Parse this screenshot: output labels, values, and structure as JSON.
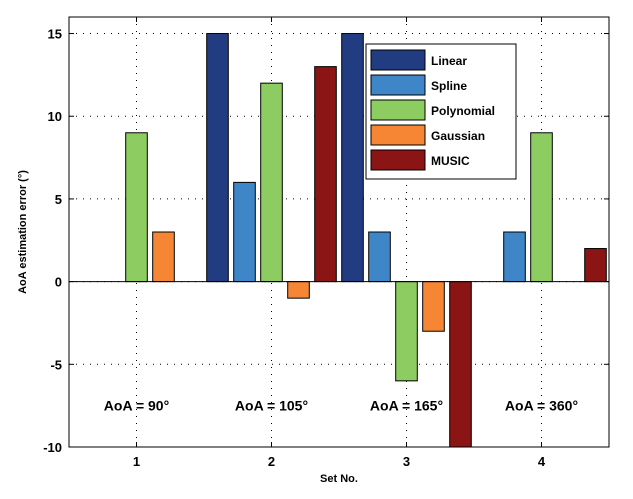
{
  "chart_data": {
    "type": "bar",
    "title": "",
    "xlabel": "Set No.",
    "ylabel": "AoA estimation error (°)",
    "categories": [
      "1",
      "2",
      "3",
      "4"
    ],
    "ylim": [
      -10,
      16
    ],
    "yticks": [
      -10,
      -5,
      0,
      5,
      10,
      15
    ],
    "grid": true,
    "legend_position": "top-right",
    "series": [
      {
        "name": "Linear",
        "color": "#223c82",
        "values": [
          0,
          15,
          15,
          0
        ]
      },
      {
        "name": "Spline",
        "color": "#3e86c8",
        "values": [
          0,
          6,
          3,
          3
        ]
      },
      {
        "name": "Polynomial",
        "color": "#8ccc60",
        "values": [
          9,
          12,
          -6,
          9
        ]
      },
      {
        "name": "Gaussian",
        "color": "#f68534",
        "values": [
          3,
          -1,
          -3,
          0
        ]
      },
      {
        "name": "MUSIC",
        "color": "#8b1414",
        "values": [
          0,
          13,
          -10,
          2
        ]
      }
    ],
    "annotations": [
      "AoA = 90°",
      "AoA = 105°",
      "AoA = 165°",
      "AoA = 360°"
    ]
  }
}
